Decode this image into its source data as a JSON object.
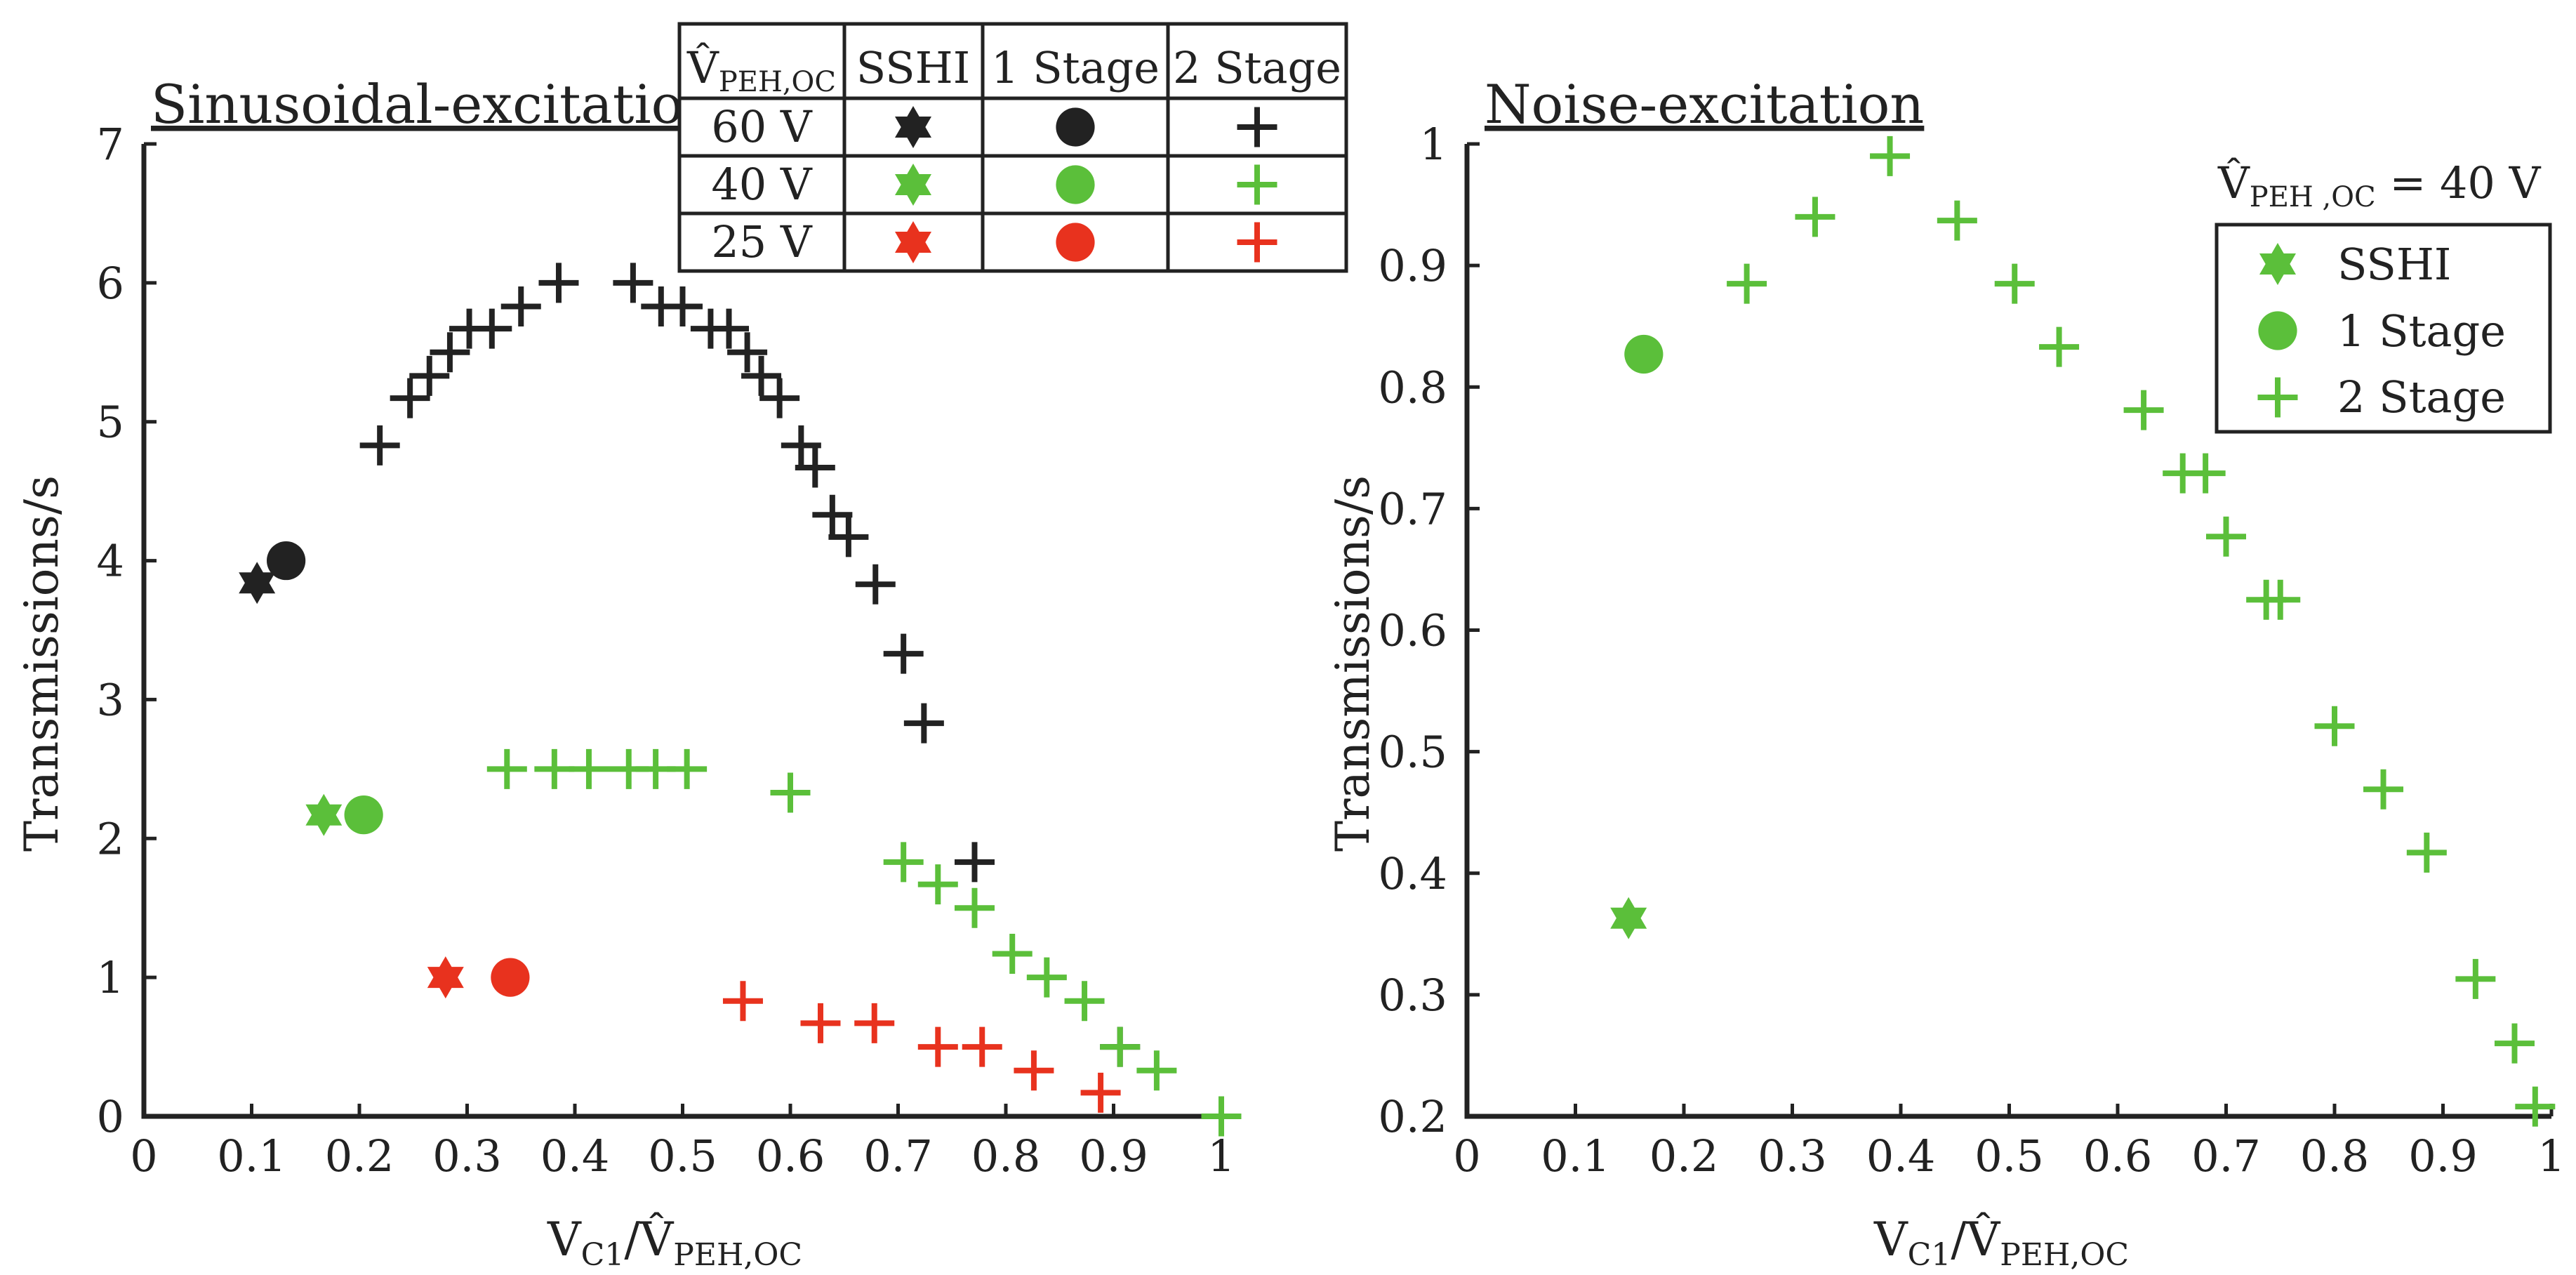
{
  "colors": {
    "black": "#222222",
    "green": "#5bbf3a",
    "red": "#e8321e"
  },
  "chart_data": [
    {
      "type": "scatter",
      "title": "Sinusoidal-excitation",
      "xlabel": "V_C1 / V̂_PEH,OC",
      "ylabel": "Transmissions/s",
      "xlim": [
        0,
        1
      ],
      "ylim": [
        0,
        7
      ],
      "xticks": [
        0,
        0.1,
        0.2,
        0.3,
        0.4,
        0.5,
        0.6,
        0.7,
        0.8,
        0.9,
        1
      ],
      "yticks": [
        0,
        1,
        2,
        3,
        4,
        5,
        6,
        7
      ],
      "legend_table": {
        "header": [
          "V̂PEH,OC",
          "SSHI",
          "1 Stage",
          "2 Stage"
        ],
        "rows": [
          "60 V",
          "40 V",
          "25 V"
        ],
        "row_colors": [
          "black",
          "green",
          "red"
        ]
      },
      "series": [
        {
          "voltage": "60 V",
          "method": "SSHI",
          "marker": "star",
          "color": "black",
          "points": [
            [
              0.105,
              3.84
            ]
          ]
        },
        {
          "voltage": "60 V",
          "method": "1 Stage",
          "marker": "circle",
          "color": "black",
          "points": [
            [
              0.132,
              4.0
            ]
          ]
        },
        {
          "voltage": "60 V",
          "method": "2 Stage",
          "marker": "plus",
          "color": "black",
          "points": [
            [
              0.219,
              4.83
            ],
            [
              0.247,
              5.17
            ],
            [
              0.265,
              5.33
            ],
            [
              0.284,
              5.5
            ],
            [
              0.302,
              5.67
            ],
            [
              0.323,
              5.67
            ],
            [
              0.35,
              5.83
            ],
            [
              0.385,
              6.0
            ],
            [
              0.454,
              6.0
            ],
            [
              0.48,
              5.83
            ],
            [
              0.5,
              5.83
            ],
            [
              0.526,
              5.67
            ],
            [
              0.543,
              5.67
            ],
            [
              0.56,
              5.5
            ],
            [
              0.573,
              5.33
            ],
            [
              0.59,
              5.17
            ],
            [
              0.61,
              4.83
            ],
            [
              0.623,
              4.67
            ],
            [
              0.639,
              4.33
            ],
            [
              0.654,
              4.17
            ],
            [
              0.679,
              3.83
            ],
            [
              0.705,
              3.33
            ],
            [
              0.724,
              2.83
            ],
            [
              0.771,
              1.83
            ],
            [
              0.906,
              0.5
            ]
          ]
        },
        {
          "voltage": "40 V",
          "method": "SSHI",
          "marker": "star",
          "color": "green",
          "points": [
            [
              0.167,
              2.17
            ]
          ]
        },
        {
          "voltage": "40 V",
          "method": "1 Stage",
          "marker": "circle",
          "color": "green",
          "points": [
            [
              0.204,
              2.17
            ]
          ]
        },
        {
          "voltage": "40 V",
          "method": "2 Stage",
          "marker": "plus",
          "color": "green",
          "points": [
            [
              0.337,
              2.5
            ],
            [
              0.381,
              2.5
            ],
            [
              0.413,
              2.5
            ],
            [
              0.45,
              2.5
            ],
            [
              0.475,
              2.5
            ],
            [
              0.504,
              2.5
            ],
            [
              0.6,
              2.33
            ],
            [
              0.705,
              1.83
            ],
            [
              0.737,
              1.67
            ],
            [
              0.771,
              1.5
            ],
            [
              0.806,
              1.17
            ],
            [
              0.838,
              1.0
            ],
            [
              0.873,
              0.83
            ],
            [
              0.906,
              0.5
            ],
            [
              0.94,
              0.33
            ],
            [
              1.0,
              0.0
            ]
          ]
        },
        {
          "voltage": "25 V",
          "method": "SSHI",
          "marker": "star",
          "color": "red",
          "points": [
            [
              0.28,
              1.0
            ]
          ]
        },
        {
          "voltage": "25 V",
          "method": "1 Stage",
          "marker": "circle",
          "color": "red",
          "points": [
            [
              0.34,
              1.0
            ]
          ]
        },
        {
          "voltage": "25 V",
          "method": "2 Stage",
          "marker": "plus",
          "color": "red",
          "points": [
            [
              0.556,
              0.83
            ],
            [
              0.628,
              0.67
            ],
            [
              0.678,
              0.67
            ],
            [
              0.737,
              0.5
            ],
            [
              0.778,
              0.5
            ],
            [
              0.826,
              0.33
            ],
            [
              0.888,
              0.17
            ]
          ]
        }
      ]
    },
    {
      "type": "scatter",
      "title": "Noise-excitation",
      "xlabel": "V_C1 / V̂_PEH,OC",
      "ylabel": "Transmissions/s",
      "xlim": [
        0,
        1
      ],
      "ylim": [
        0.2,
        1
      ],
      "xticks": [
        0,
        0.1,
        0.2,
        0.3,
        0.4,
        0.5,
        0.6,
        0.7,
        0.8,
        0.9,
        1
      ],
      "yticks": [
        0.2,
        0.3,
        0.4,
        0.5,
        0.6,
        0.7,
        0.8,
        0.9,
        1
      ],
      "legend_title": "V̂PEH,OC = 40 V",
      "legend": [
        "SSHI",
        "1 Stage",
        "2 Stage"
      ],
      "series": [
        {
          "name": "SSHI",
          "marker": "star",
          "color": "green",
          "points": [
            [
              0.149,
              0.363
            ]
          ]
        },
        {
          "name": "1 Stage",
          "marker": "circle",
          "color": "green",
          "points": [
            [
              0.163,
              0.827
            ]
          ]
        },
        {
          "name": "2 Stage",
          "marker": "plus",
          "color": "green",
          "points": [
            [
              0.258,
              0.885
            ],
            [
              0.321,
              0.94
            ],
            [
              0.39,
              0.99
            ],
            [
              0.452,
              0.937
            ],
            [
              0.505,
              0.885
            ],
            [
              0.546,
              0.833
            ],
            [
              0.624,
              0.781
            ],
            [
              0.66,
              0.729
            ],
            [
              0.681,
              0.729
            ],
            [
              0.7,
              0.677
            ],
            [
              0.737,
              0.625
            ],
            [
              0.75,
              0.625
            ],
            [
              0.8,
              0.521
            ],
            [
              0.845,
              0.469
            ],
            [
              0.885,
              0.417
            ],
            [
              0.93,
              0.313
            ],
            [
              0.966,
              0.26
            ],
            [
              0.985,
              0.208
            ]
          ]
        }
      ]
    }
  ]
}
